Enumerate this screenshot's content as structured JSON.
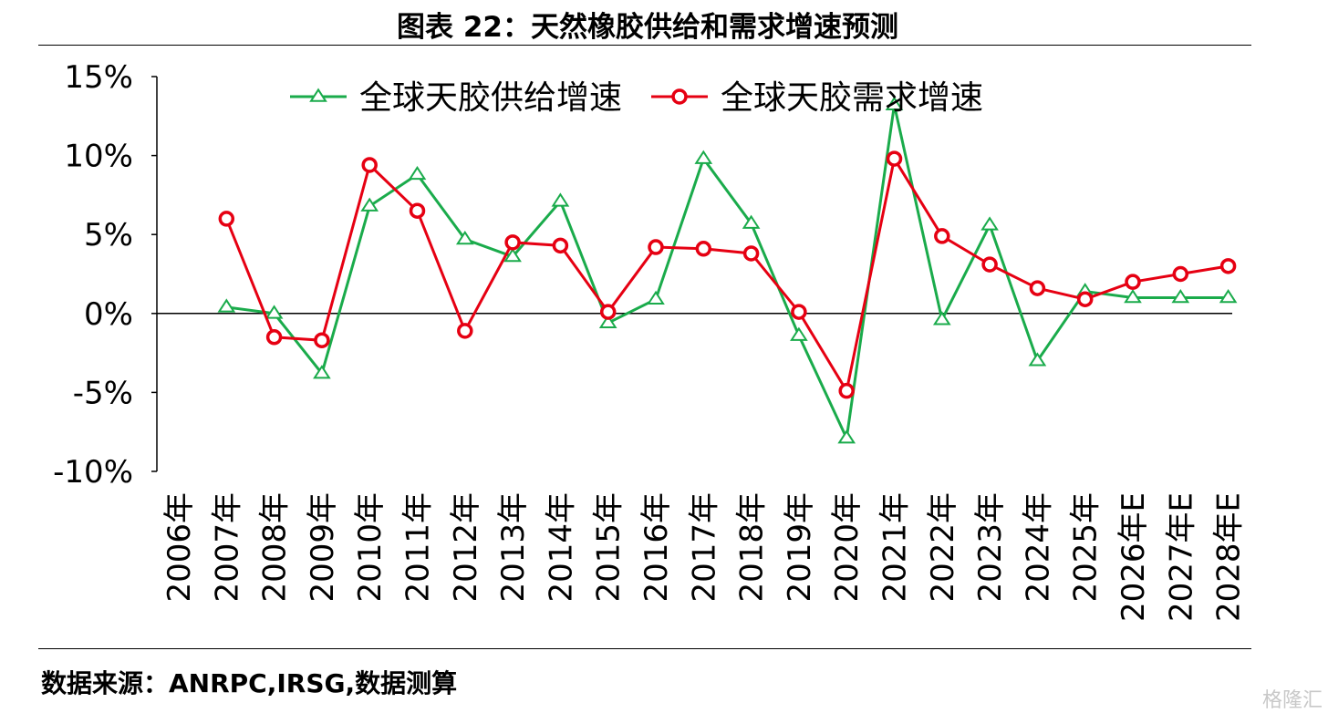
{
  "header": {
    "title": "图表 22：天然橡胶供给和需求增速预测"
  },
  "footer": {
    "source": "数据来源：ANRPC,IRSG,数据测算",
    "watermark": "格隆汇"
  },
  "chart_data": {
    "type": "line",
    "title": "图表 22：天然橡胶供给和需求增速预测",
    "categories": [
      "2006年",
      "2007年",
      "2008年",
      "2009年",
      "2010年",
      "2011年",
      "2012年",
      "2013年",
      "2014年",
      "2015年",
      "2016年",
      "2017年",
      "2018年",
      "2019年",
      "2020年",
      "2021年",
      "2022年",
      "2023年",
      "2024年",
      "2025年",
      "2026年E",
      "2027年E",
      "2028年E"
    ],
    "yticks": [
      "15%",
      "10%",
      "5%",
      "0%",
      "-5%",
      "-10%"
    ],
    "ylim": [
      -10,
      15
    ],
    "grid": false,
    "legend_position": "top",
    "series": [
      {
        "name": "全球天胶供给增速",
        "color": "#1aab4b",
        "marker": "triangle",
        "values": [
          null,
          0.4,
          0.0,
          -3.8,
          6.8,
          8.8,
          4.7,
          3.6,
          7.1,
          -0.6,
          0.9,
          9.8,
          5.7,
          -1.4,
          -7.9,
          13.2,
          -0.4,
          5.6,
          -3.0,
          1.4,
          1.0,
          1.0,
          1.0
        ]
      },
      {
        "name": "全球天胶需求增速",
        "color": "#e60012",
        "marker": "circle",
        "values": [
          null,
          6.0,
          -1.5,
          -1.7,
          9.4,
          6.5,
          -1.1,
          4.5,
          4.3,
          0.1,
          4.2,
          4.1,
          3.8,
          0.1,
          -4.9,
          9.8,
          4.9,
          3.1,
          1.6,
          0.9,
          2.0,
          2.5,
          3.0
        ]
      }
    ]
  }
}
